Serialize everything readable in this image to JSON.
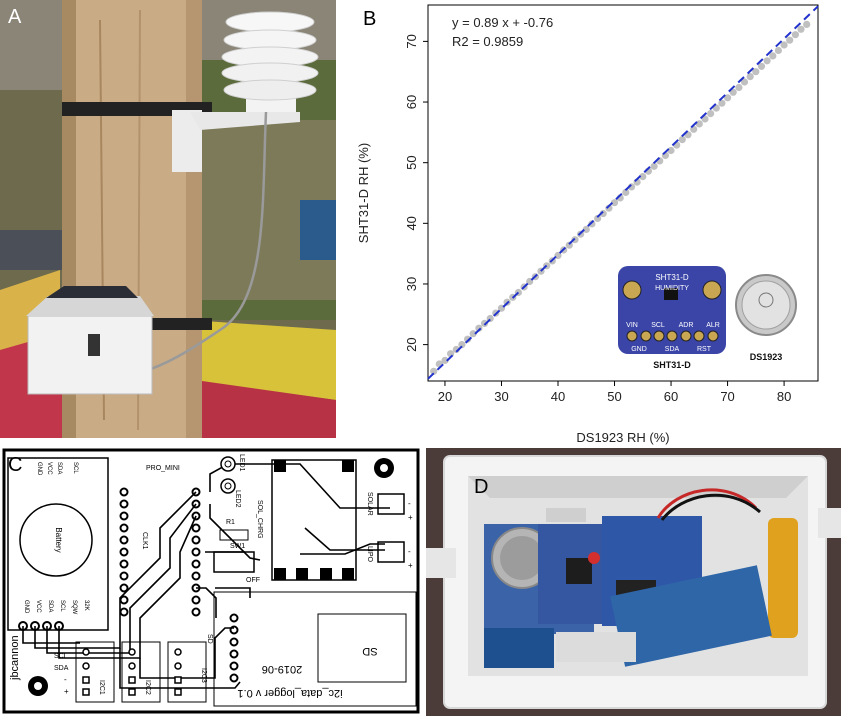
{
  "panels": {
    "a": {
      "label": "A"
    },
    "b": {
      "label": "B"
    },
    "c": {
      "label": "C"
    },
    "d": {
      "label": "D"
    }
  },
  "chart_data": {
    "type": "scatter",
    "xlabel": "DS1923 RH (%)",
    "ylabel": "SHT31-D RH (%)",
    "xlim": [
      17,
      86
    ],
    "ylim": [
      14,
      76
    ],
    "xticks": [
      20,
      30,
      40,
      50,
      60,
      70,
      80
    ],
    "yticks": [
      20,
      30,
      40,
      50,
      60,
      70
    ],
    "point_color": "#c0c0c0",
    "fit_color": "#2233cc",
    "fit": {
      "slope": 0.89,
      "intercept": -0.76,
      "style": "dashed"
    },
    "annotations": [
      "y = 0.89 x + -0.76",
      "R2 = 0.9859"
    ],
    "series": [
      {
        "x": [
          18,
          19,
          20,
          21,
          22,
          23,
          24,
          25,
          26,
          27,
          28,
          29,
          30,
          31,
          32,
          33,
          34,
          35,
          36,
          37,
          38,
          39,
          40,
          41,
          42,
          43,
          44,
          45,
          46,
          47,
          48,
          49,
          50,
          51,
          52,
          53,
          54,
          55,
          56,
          57,
          58,
          59,
          60,
          61,
          62,
          63,
          64,
          65,
          66,
          67,
          68,
          69,
          70,
          71,
          72,
          73,
          74,
          75,
          76,
          77,
          78,
          79,
          80,
          81,
          82,
          83,
          84
        ],
        "y": [
          15.6,
          16.8,
          17.4,
          18.5,
          19.2,
          20.0,
          20.9,
          21.8,
          22.7,
          23.5,
          24.3,
          25.2,
          26.0,
          27.0,
          27.8,
          28.6,
          29.5,
          30.4,
          31.2,
          32.1,
          33.0,
          33.8,
          34.7,
          35.6,
          36.4,
          37.3,
          38.2,
          39.0,
          39.9,
          40.8,
          41.6,
          42.5,
          43.4,
          44.2,
          45.1,
          46.0,
          46.8,
          47.7,
          48.6,
          49.4,
          50.3,
          51.2,
          52.0,
          52.9,
          53.8,
          54.6,
          55.5,
          56.4,
          57.2,
          58.1,
          59.0,
          59.8,
          60.7,
          61.6,
          62.4,
          63.3,
          64.2,
          65.0,
          65.9,
          66.8,
          67.6,
          68.5,
          69.4,
          70.2,
          71.1,
          72.0,
          72.8
        ]
      }
    ]
  },
  "inset_b": {
    "board_title": "SHT31-D",
    "board_subtitle": "HUMIDITY",
    "board_pins_top": [
      "VIN",
      "SCL",
      "ADR",
      "ALR"
    ],
    "board_pins_bottom": [
      "GND",
      "SDA",
      "RST"
    ],
    "board_caption": "SHT31-D",
    "button_caption": "DS1923"
  },
  "pcb": {
    "battery_label": "Battery",
    "top_header_pins": [
      "GND",
      "VCC",
      "SDA",
      "SCL"
    ],
    "bottom_header_pins": [
      "GND",
      "VCC",
      "SDA",
      "SCL",
      "SQW",
      "32K"
    ],
    "pro_mini": "PRO_MINI",
    "led1": "LED1",
    "led2": "LED2",
    "clk1": "CLK1",
    "r1": "R1",
    "sol_chrg": "SOL_CHRG",
    "sw1": "SW1",
    "off": "OFF",
    "solar": "SOLAR",
    "lipo": "LIPO",
    "sd": "SD",
    "scl": "SCL",
    "sda": "SDA",
    "minus": "-",
    "plus": "+",
    "i2c_labels": [
      "I2C1",
      "I2C2",
      "I2C3"
    ],
    "author": "jbcannon",
    "date": "2019-06",
    "title": "i2c_data_logger v 0.1"
  }
}
